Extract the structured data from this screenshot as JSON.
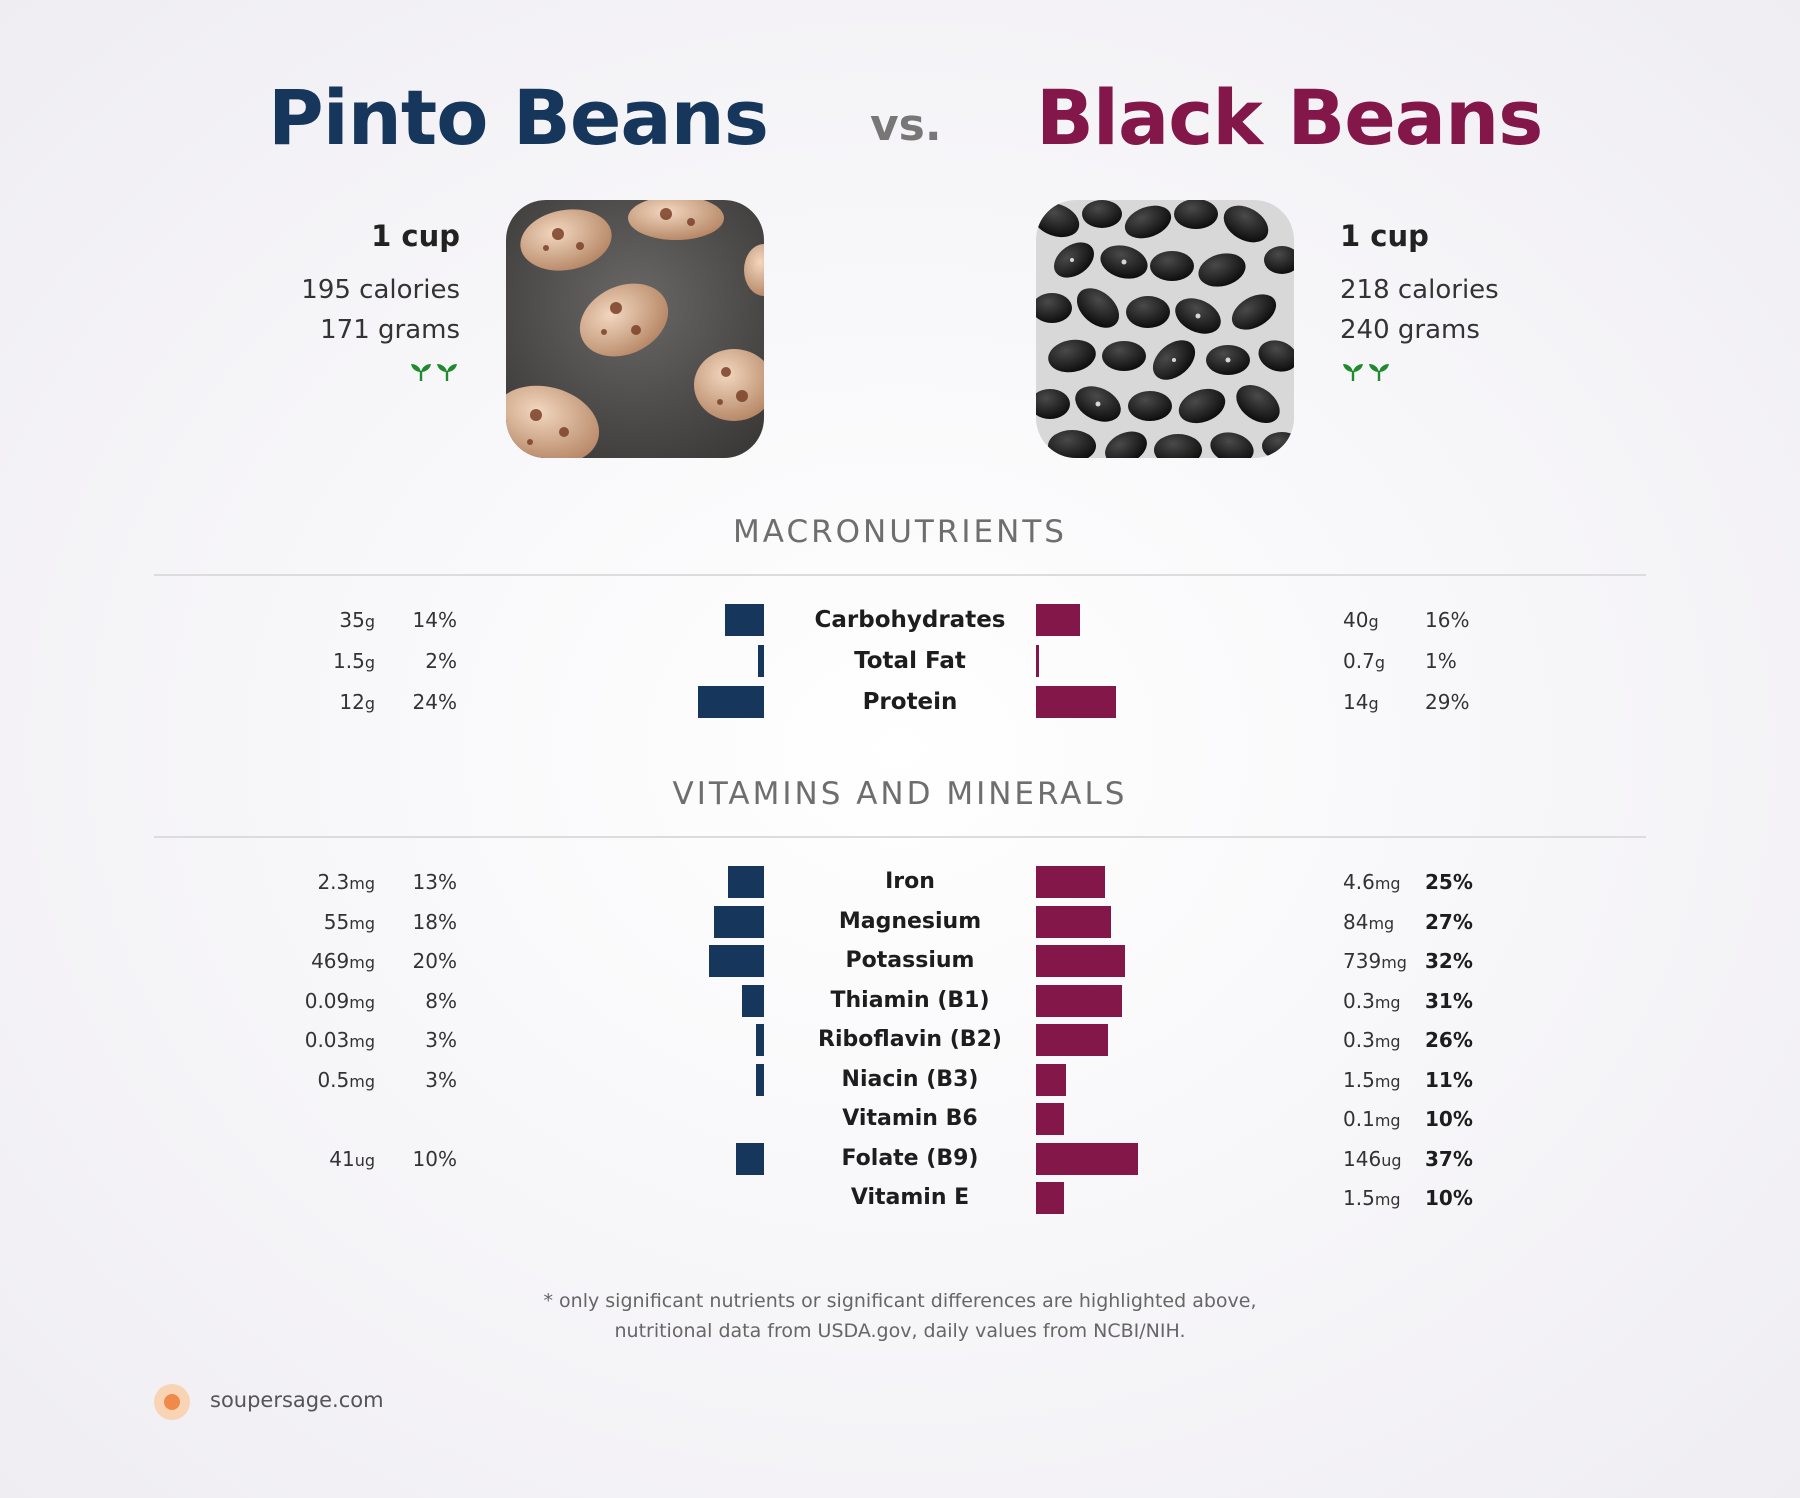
{
  "header": {
    "left_name": "Pinto Beans",
    "vs": "vs.",
    "right_name": "Black Beans"
  },
  "colors": {
    "left": "#16365c",
    "right": "#83174a",
    "leaf": "#1f8a2e"
  },
  "left_food": {
    "serving": "1 cup",
    "calories": "195 calories",
    "grams": "171 grams",
    "icon": "plant-leaf-icon"
  },
  "right_food": {
    "serving": "1 cup",
    "calories": "218 calories",
    "grams": "240 grams",
    "icon": "plant-leaf-icon"
  },
  "sections": {
    "macros": "MACRONUTRIENTS",
    "vitamins": "VITAMINS AND MINERALS"
  },
  "chart_data": [
    {
      "type": "bar",
      "title": "MACRONUTRIENTS",
      "categories": [
        "Carbohydrates",
        "Total Fat",
        "Protein"
      ],
      "series": [
        {
          "name": "Pinto Beans",
          "amounts": [
            "35",
            "1.5",
            "12"
          ],
          "units": [
            "g",
            "g",
            "g"
          ],
          "values": [
            14,
            2,
            24
          ],
          "labels": [
            "14%",
            "2%",
            "24%"
          ]
        },
        {
          "name": "Black Beans",
          "amounts": [
            "40",
            "0.7",
            "14"
          ],
          "units": [
            "g",
            "g",
            "g"
          ],
          "values": [
            16,
            1,
            29
          ],
          "labels": [
            "16%",
            "1%",
            "29%"
          ]
        }
      ]
    },
    {
      "type": "bar",
      "title": "VITAMINS AND MINERALS",
      "categories": [
        "Iron",
        "Magnesium",
        "Potassium",
        "Thiamin (B1)",
        "Riboflavin (B2)",
        "Niacin (B3)",
        "Vitamin B6",
        "Folate (B9)",
        "Vitamin E"
      ],
      "series": [
        {
          "name": "Pinto Beans",
          "amounts": [
            "2.3",
            "55",
            "469",
            "0.09",
            "0.03",
            "0.5",
            "",
            "41",
            ""
          ],
          "units": [
            "mg",
            "mg",
            "mg",
            "mg",
            "mg",
            "mg",
            "",
            "ug",
            ""
          ],
          "values": [
            13,
            18,
            20,
            8,
            3,
            3,
            0,
            10,
            0
          ],
          "labels": [
            "13%",
            "18%",
            "20%",
            "8%",
            "3%",
            "3%",
            "",
            "10%",
            ""
          ]
        },
        {
          "name": "Black Beans",
          "amounts": [
            "4.6",
            "84",
            "739",
            "0.3",
            "0.3",
            "1.5",
            "0.1",
            "146",
            "1.5"
          ],
          "units": [
            "mg",
            "mg",
            "mg",
            "mg",
            "mg",
            "mg",
            "mg",
            "ug",
            "mg"
          ],
          "values": [
            25,
            27,
            32,
            31,
            26,
            11,
            10,
            37,
            10
          ],
          "labels": [
            "25%",
            "27%",
            "32%",
            "31%",
            "26%",
            "11%",
            "10%",
            "37%",
            "10%"
          ]
        }
      ]
    }
  ],
  "footnote": {
    "line1": "* only significant nutrients or significant differences are highlighted above,",
    "line2": "nutritional data from USDA.gov, daily values from NCBI/NIH."
  },
  "brand": {
    "site": "soupersage.com",
    "icon": "soupersage-logo-icon"
  }
}
